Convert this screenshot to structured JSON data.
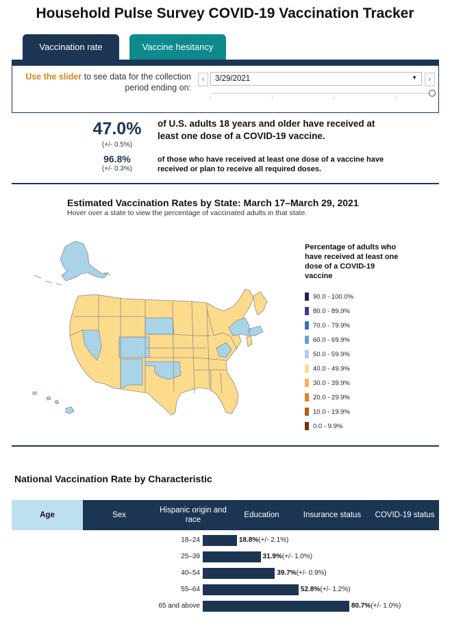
{
  "title": "Household Pulse Survey COVID-19 Vaccination Tracker",
  "tabs": [
    {
      "label": "Vaccination rate",
      "active": true
    },
    {
      "label": "Vaccine hesitancy",
      "active": false
    }
  ],
  "slider": {
    "instruction_em": "Use the slider",
    "instruction_rest": " to see data for the collection period ending on:",
    "selected_date": "3/29/2021",
    "prev_icon": "chevron-left-icon",
    "next_icon": "chevron-right-icon"
  },
  "stats": {
    "main_value": "47.0%",
    "main_moe": "(+/- 0.5%)",
    "main_desc": "of U.S. adults 18 years and older have received at least one dose of a COVID-19 vaccine.",
    "sub_value": "96.8%",
    "sub_moe": "(+/- 0.3%)",
    "sub_desc": "of those who have received at least one dose of a vaccine have received or plan to receive all required doses."
  },
  "map": {
    "title": "Estimated Vaccination Rates by State: March 17–March 29, 2021",
    "subtitle": "Hover over a state to view the percentage of vaccinated adults in that state.",
    "legend_title": "Percentage of adults who have received at least one dose of a COVID-19 vaccine",
    "legend": [
      {
        "label": "90.0 - 100.0%",
        "color": "#1b2a4a"
      },
      {
        "label": "80.0 - 89.9%",
        "color": "#3b3d8f"
      },
      {
        "label": "70.0 - 79.9%",
        "color": "#3f6fb0"
      },
      {
        "label": "60.0 - 69.9%",
        "color": "#6e9fcf"
      },
      {
        "label": "50.0 - 59.9%",
        "color": "#a9d4e8"
      },
      {
        "label": "40.0 - 49.9%",
        "color": "#fddb8c"
      },
      {
        "label": "30.0 - 39.9%",
        "color": "#f6b25b"
      },
      {
        "label": "20.0 - 29.9%",
        "color": "#e4861c"
      },
      {
        "label": "10.0 - 19.9%",
        "color": "#b85a0e"
      },
      {
        "label": "0.0 - 9.9%",
        "color": "#6a3510"
      }
    ],
    "band_colors": {
      "50-59": "#a9d4e8",
      "40-49": "#fddb8c"
    }
  },
  "characteristic": {
    "title": "National Vaccination Rate by Characteristic",
    "tabs": [
      {
        "label": "Age",
        "active": true
      },
      {
        "label": "Sex",
        "active": false
      },
      {
        "label": "Hispanic origin and race",
        "active": false
      },
      {
        "label": "Education",
        "active": false
      },
      {
        "label": "Insurance status",
        "active": false
      },
      {
        "label": "COVID-19 status",
        "active": false
      }
    ],
    "rows": [
      {
        "label": "18–24",
        "value": 18.8,
        "value_text": "18.8%",
        "moe": "(+/- 2.1%)"
      },
      {
        "label": "25–39",
        "value": 31.9,
        "value_text": "31.9%",
        "moe": "(+/- 1.0%)"
      },
      {
        "label": "40–54",
        "value": 39.7,
        "value_text": "39.7%",
        "moe": "(+/- 0.9%)"
      },
      {
        "label": "55–64",
        "value": 52.8,
        "value_text": "52.8%",
        "moe": "(+/- 1.2%)"
      },
      {
        "label": "65 and above",
        "value": 80.7,
        "value_text": "80.7%",
        "moe": "(+/- 1.0%)"
      }
    ]
  }
}
